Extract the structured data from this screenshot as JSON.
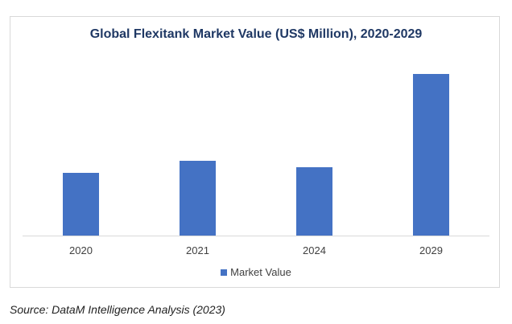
{
  "chart_data": {
    "type": "bar",
    "title": "Global Flexitank Market Value (US$ Million), 2020-2029",
    "categories": [
      "2020",
      "2021",
      "2024",
      "2029"
    ],
    "series": [
      {
        "name": "Market Value",
        "values": [
          78,
          93,
          85,
          201
        ],
        "color": "#4472c4"
      }
    ],
    "xlabel": "",
    "ylabel": "",
    "ylim": [
      0,
      230
    ],
    "grid": false,
    "legend_placement": "bottom",
    "note": "values are relative (no y-axis shown)"
  },
  "source": "Source: DataM Intelligence Analysis (2023)"
}
